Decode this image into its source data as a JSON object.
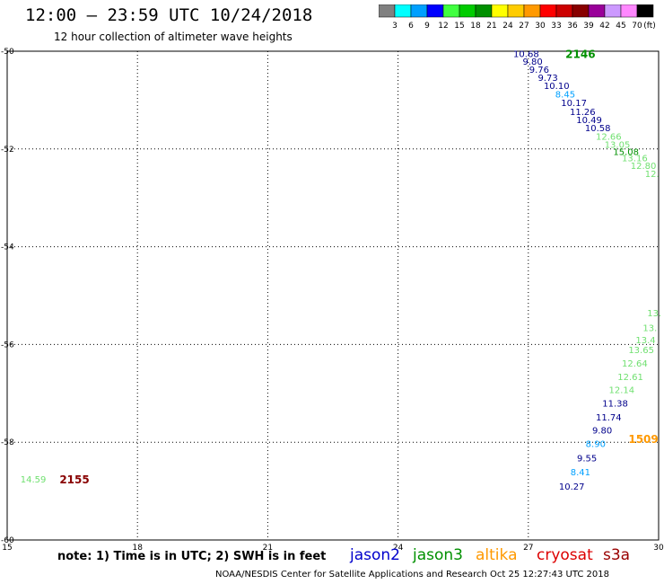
{
  "header": {
    "title": "12:00 – 23:59 UTC 10/24/2018",
    "subtitle": "12 hour collection of altimeter wave heights"
  },
  "colorbar": {
    "unit_label": "(ft)",
    "bins": [
      {
        "label": "3",
        "color": "#808080"
      },
      {
        "label": "6",
        "color": "#00ffff"
      },
      {
        "label": "9",
        "color": "#00a0ff"
      },
      {
        "label": "12",
        "color": "#0000ff"
      },
      {
        "label": "15",
        "color": "#40ff40"
      },
      {
        "label": "18",
        "color": "#00cc00"
      },
      {
        "label": "21",
        "color": "#009000"
      },
      {
        "label": "24",
        "color": "#ffff00"
      },
      {
        "label": "27",
        "color": "#ffcc00"
      },
      {
        "label": "30",
        "color": "#ff9900"
      },
      {
        "label": "33",
        "color": "#ff0000"
      },
      {
        "label": "36",
        "color": "#cc0000"
      },
      {
        "label": "39",
        "color": "#880000"
      },
      {
        "label": "42",
        "color": "#990099"
      },
      {
        "label": "45",
        "color": "#cc99ff"
      },
      {
        "label": "70",
        "color": "#ff88ff"
      },
      {
        "label": "",
        "color": "#000000"
      }
    ]
  },
  "chart_data": {
    "type": "scatter",
    "title": "12:00 – 23:59 UTC 10/24/2018",
    "subtitle": "12 hour collection of altimeter wave heights",
    "xlim": [
      15,
      30
    ],
    "ylim": [
      -60,
      -50
    ],
    "x_ticks": [
      "15",
      "18",
      "21",
      "24",
      "27",
      "30"
    ],
    "y_ticks": [
      "-50",
      "-52",
      "-54",
      "-56",
      "-58",
      "-60"
    ],
    "grid": true,
    "points": [
      {
        "x": 26.95,
        "y": -50.05,
        "label": "10.68",
        "color": "#00008b"
      },
      {
        "x": 27.1,
        "y": -50.2,
        "label": "9.80",
        "color": "#00008b"
      },
      {
        "x": 27.25,
        "y": -50.37,
        "label": "9.76",
        "color": "#00008b"
      },
      {
        "x": 27.45,
        "y": -50.53,
        "label": "9.73",
        "color": "#00008b"
      },
      {
        "x": 27.65,
        "y": -50.7,
        "label": "10.10",
        "color": "#00008b"
      },
      {
        "x": 27.85,
        "y": -50.87,
        "label": "8.45",
        "color": "#00a0ff"
      },
      {
        "x": 28.05,
        "y": -51.05,
        "label": "10.17",
        "color": "#00008b"
      },
      {
        "x": 28.25,
        "y": -51.23,
        "label": "11.26",
        "color": "#00008b"
      },
      {
        "x": 28.4,
        "y": -51.4,
        "label": "10.49",
        "color": "#00008b"
      },
      {
        "x": 28.6,
        "y": -51.56,
        "label": "10.58",
        "color": "#00008b"
      },
      {
        "x": 28.85,
        "y": -51.74,
        "label": "12.66",
        "color": "#70e070"
      },
      {
        "x": 29.05,
        "y": -51.9,
        "label": "13.05",
        "color": "#70e070"
      },
      {
        "x": 29.25,
        "y": -52.05,
        "label": "15.08",
        "color": "#009000"
      },
      {
        "x": 29.45,
        "y": -52.18,
        "label": "13.16",
        "color": "#70e070"
      },
      {
        "x": 29.65,
        "y": -52.33,
        "label": "12.80",
        "color": "#70e070"
      },
      {
        "x": 29.85,
        "y": -52.5,
        "label": "12.",
        "color": "#70e070"
      },
      {
        "x": 29.9,
        "y": -55.35,
        "label": "13.",
        "color": "#70e070"
      },
      {
        "x": 29.8,
        "y": -55.65,
        "label": "13.",
        "color": "#70e070"
      },
      {
        "x": 29.7,
        "y": -55.9,
        "label": "13.4",
        "color": "#70e070"
      },
      {
        "x": 29.6,
        "y": -56.1,
        "label": "13.65",
        "color": "#70e070"
      },
      {
        "x": 29.45,
        "y": -56.38,
        "label": "12.64",
        "color": "#70e070"
      },
      {
        "x": 29.35,
        "y": -56.65,
        "label": "12.61",
        "color": "#70e070"
      },
      {
        "x": 29.15,
        "y": -56.92,
        "label": "12.14",
        "color": "#70e070"
      },
      {
        "x": 29.0,
        "y": -57.2,
        "label": "11.38",
        "color": "#00008b"
      },
      {
        "x": 28.85,
        "y": -57.48,
        "label": "11.74",
        "color": "#00008b"
      },
      {
        "x": 28.7,
        "y": -57.75,
        "label": "9.80",
        "color": "#00008b"
      },
      {
        "x": 28.55,
        "y": -58.02,
        "label": "8.90",
        "color": "#00a0ff"
      },
      {
        "x": 28.35,
        "y": -58.32,
        "label": "9.55",
        "color": "#00008b"
      },
      {
        "x": 28.2,
        "y": -58.6,
        "label": "8.41",
        "color": "#00a0ff"
      },
      {
        "x": 28.0,
        "y": -58.9,
        "label": "10.27",
        "color": "#00008b"
      },
      {
        "x": 15.6,
        "y": -58.75,
        "label": "14.59",
        "color": "#70e070"
      }
    ],
    "pass_labels": [
      {
        "x": 28.2,
        "y": -50.05,
        "label": "2146",
        "color": "#009000"
      },
      {
        "x": 29.65,
        "y": -57.92,
        "label": "1509",
        "color": "#ff9900"
      },
      {
        "x": 16.55,
        "y": -58.75,
        "label": "2155",
        "color": "#880000"
      }
    ]
  },
  "notes": {
    "note": "note: 1) Time is in UTC; 2) SWH is in feet",
    "satellites": [
      {
        "name": "jason2",
        "color": "#0000cc"
      },
      {
        "name": "jason3",
        "color": "#009000"
      },
      {
        "name": "altika",
        "color": "#ff9900"
      },
      {
        "name": "cryosat",
        "color": "#dd0000"
      },
      {
        "name": "s3a",
        "color": "#990000"
      }
    ],
    "footer": "NOAA/NESDIS Center for Satellite Applications and Research     Oct 25 12:27:43 UTC 2018"
  }
}
